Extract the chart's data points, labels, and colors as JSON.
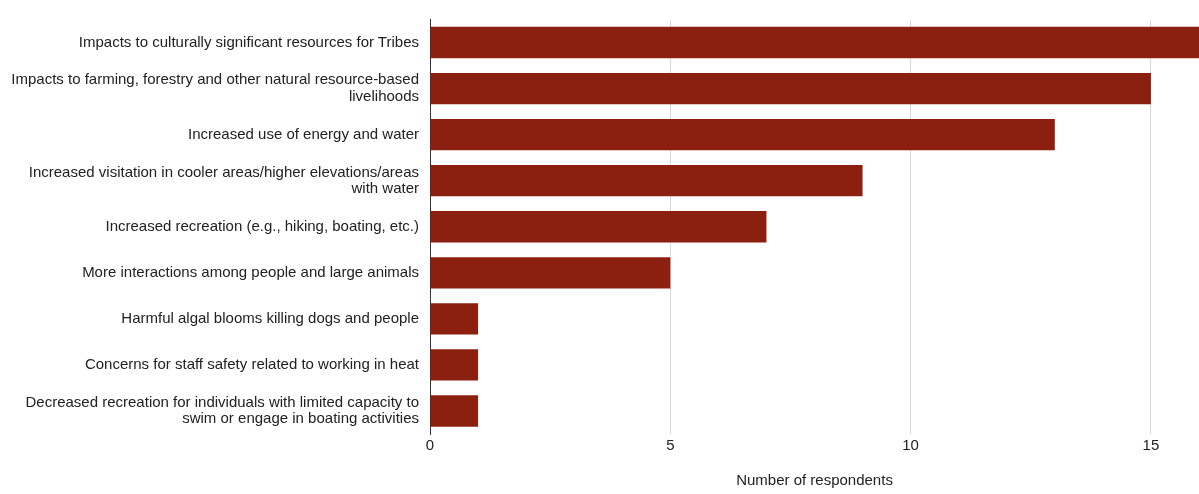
{
  "chart_data": {
    "type": "bar",
    "orientation": "horizontal",
    "xlabel": "Number of respondents",
    "categories": [
      "Impacts to culturally significant resources for Tribes",
      "Impacts to farming, forestry and other natural resource-based livelihoods",
      "Increased use of energy and water",
      "Increased visitation in cooler areas/higher elevations/areas with water",
      "Increased recreation (e.g., hiking, boating, etc.)",
      "More interactions among people and large animals",
      "Harmful algal blooms killing dogs and people",
      "Concerns for staff safety related to working in heat",
      "Decreased recreation for individuals with limited capacity to swim or engage in boating activities"
    ],
    "values": [
      16,
      15,
      13,
      9,
      7,
      5,
      1,
      1,
      1
    ],
    "color": "#8b2010",
    "xlim": [
      0,
      16
    ],
    "xticks": [
      0,
      5,
      10,
      15
    ],
    "grid": "x",
    "legend": false
  }
}
